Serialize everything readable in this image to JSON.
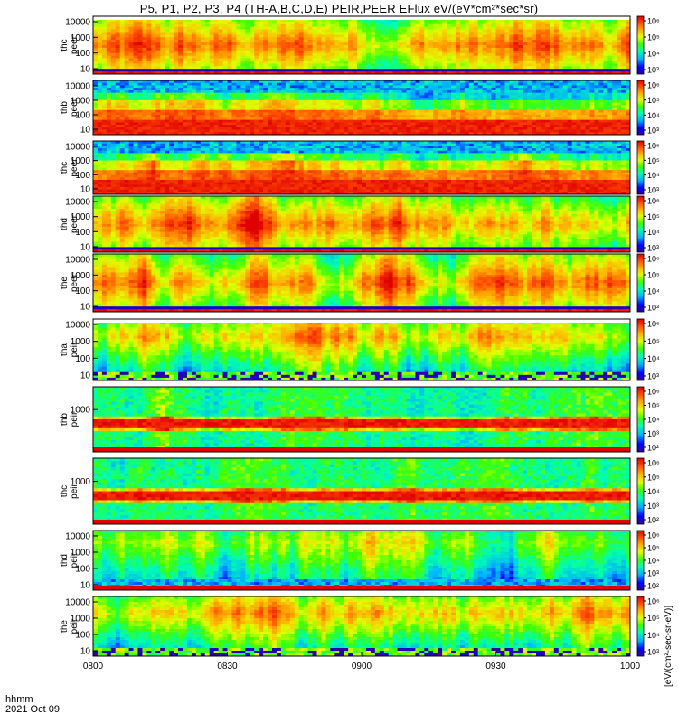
{
  "title": "P5, P1, P2, P3, P4 (TH-A,B,C,D,E) PEIR,PEER EFlux eV/(eV*cm²*sec*sr)",
  "footer": {
    "time_format": "hhmm",
    "date": "2021 Oct 09"
  },
  "colorbar_label": "[eV/(cm²-sec-sr-eV)]",
  "chart_data": [
    {
      "type": "heatmap",
      "ylabel": "thc peer",
      "y_ticks": [
        "10000",
        "1000",
        "100",
        "10"
      ],
      "colorbar_ticks": [
        "10⁶",
        "10⁵",
        "10⁴",
        "10³"
      ],
      "x_ticks": [],
      "profile": "peer_full",
      "data_gap": "top"
    },
    {
      "type": "heatmap",
      "ylabel": "thb peer",
      "y_ticks": [
        "10000",
        "1000",
        "100",
        "10"
      ],
      "colorbar_ticks": [
        "10⁶",
        "10⁵",
        "10⁴",
        "10³"
      ],
      "x_ticks": [],
      "profile": "peer_low"
    },
    {
      "type": "heatmap",
      "ylabel": "thc peer",
      "y_ticks": [
        "10000",
        "1000",
        "100",
        "10"
      ],
      "colorbar_ticks": [
        "10⁶",
        "10⁵",
        "10⁴",
        "10³"
      ],
      "x_ticks": [],
      "profile": "peer_low"
    },
    {
      "type": "heatmap",
      "ylabel": "thd peer",
      "y_ticks": [
        "10000",
        "1000",
        "100",
        "10"
      ],
      "colorbar_ticks": [
        "10⁶",
        "10⁵",
        "10⁴",
        "10³"
      ],
      "x_ticks": [],
      "profile": "peer_full"
    },
    {
      "type": "heatmap",
      "ylabel": "the peer",
      "y_ticks": [
        "10000",
        "1000",
        "100",
        "10"
      ],
      "colorbar_ticks": [
        "10⁶",
        "10⁵",
        "10⁴",
        "10³"
      ],
      "x_ticks": [],
      "profile": "peer_full"
    },
    {
      "type": "heatmap",
      "ylabel": "tha peir",
      "y_ticks": [
        "10000",
        "1000",
        "100",
        "10"
      ],
      "colorbar_ticks": [
        "10⁶",
        "10⁵",
        "10⁴",
        "10³"
      ],
      "x_ticks": [],
      "profile": "peir_full",
      "data_gap": "top"
    },
    {
      "type": "heatmap",
      "ylabel": "thb peir",
      "y_ticks": [
        "1000"
      ],
      "colorbar_ticks": [
        "10⁶",
        "10⁵",
        "10⁴",
        "10³",
        "10²"
      ],
      "x_ticks": [],
      "profile": "peir_band",
      "data_gap": "bottom"
    },
    {
      "type": "heatmap",
      "ylabel": "thc peir",
      "y_ticks": [
        "1000"
      ],
      "colorbar_ticks": [
        "10⁶",
        "10⁵",
        "10⁴",
        "10³",
        "10²"
      ],
      "x_ticks": [],
      "profile": "peir_band",
      "data_gap": "bottom"
    },
    {
      "type": "heatmap",
      "ylabel": "thd peir",
      "y_ticks": [
        "10000",
        "1000",
        "100",
        "10"
      ],
      "colorbar_ticks": [
        "10⁶",
        "10⁵",
        "10⁴",
        "10³",
        "10²"
      ],
      "x_ticks": [],
      "profile": "peir_weak",
      "data_gap": "bottom"
    },
    {
      "type": "heatmap",
      "ylabel": "the peir",
      "y_ticks": [
        "10000",
        "1000",
        "100",
        "10"
      ],
      "colorbar_ticks": [
        "10⁶",
        "10⁵",
        "10⁴",
        "10³"
      ],
      "x_ticks": [
        "0800",
        "0830",
        "0900",
        "0930",
        "1000"
      ],
      "profile": "peir_full"
    }
  ]
}
